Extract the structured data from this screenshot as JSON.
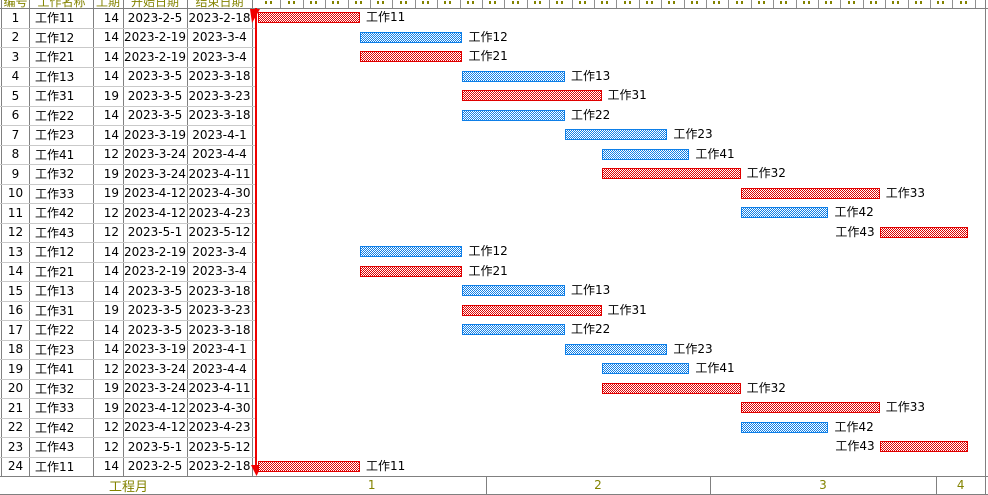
{
  "colors": {
    "critical_bar": "#e00000",
    "normal_bar": "#0e7fe8",
    "timeline_line": "#f00000",
    "accent_text": "#838300",
    "grid_dark": "#808080",
    "grid_light": "#c9c9c9",
    "background": "#ffffff"
  },
  "table": {
    "headers": [
      "编号",
      "工作名称",
      "工期",
      "开始日期",
      "结束日期"
    ],
    "footer_label": "工程月"
  },
  "chart_data": {
    "type": "bar",
    "subtype": "gantt",
    "title": "",
    "xlabel": "工程月",
    "x_ticks": [
      "1",
      "2",
      "3",
      "4"
    ],
    "origin_date": "2023-2-5",
    "legend": {
      "critical_color": "#e00000",
      "normal_color": "#0e7fe8"
    },
    "tasks": [
      {
        "id": "1",
        "name": "工作11",
        "duration": "14",
        "start": "2023-2-5",
        "end": "2023-2-18",
        "type": "critical",
        "label_side": "right"
      },
      {
        "id": "2",
        "name": "工作12",
        "duration": "14",
        "start": "2023-2-19",
        "end": "2023-3-4",
        "type": "normal",
        "label_side": "right"
      },
      {
        "id": "3",
        "name": "工作21",
        "duration": "14",
        "start": "2023-2-19",
        "end": "2023-3-4",
        "type": "critical",
        "label_side": "right"
      },
      {
        "id": "4",
        "name": "工作13",
        "duration": "14",
        "start": "2023-3-5",
        "end": "2023-3-18",
        "type": "normal",
        "label_side": "right"
      },
      {
        "id": "5",
        "name": "工作31",
        "duration": "19",
        "start": "2023-3-5",
        "end": "2023-3-23",
        "type": "critical",
        "label_side": "right"
      },
      {
        "id": "6",
        "name": "工作22",
        "duration": "14",
        "start": "2023-3-5",
        "end": "2023-3-18",
        "type": "normal",
        "label_side": "right"
      },
      {
        "id": "7",
        "name": "工作23",
        "duration": "14",
        "start": "2023-3-19",
        "end": "2023-4-1",
        "type": "normal",
        "label_side": "right"
      },
      {
        "id": "8",
        "name": "工作41",
        "duration": "12",
        "start": "2023-3-24",
        "end": "2023-4-4",
        "type": "normal",
        "label_side": "right"
      },
      {
        "id": "9",
        "name": "工作32",
        "duration": "19",
        "start": "2023-3-24",
        "end": "2023-4-11",
        "type": "critical",
        "label_side": "right"
      },
      {
        "id": "10",
        "name": "工作33",
        "duration": "19",
        "start": "2023-4-12",
        "end": "2023-4-30",
        "type": "critical",
        "label_side": "right"
      },
      {
        "id": "11",
        "name": "工作42",
        "duration": "12",
        "start": "2023-4-12",
        "end": "2023-4-23",
        "type": "normal",
        "label_side": "right"
      },
      {
        "id": "12",
        "name": "工作43",
        "duration": "12",
        "start": "2023-5-1",
        "end": "2023-5-12",
        "type": "critical",
        "label_side": "left"
      },
      {
        "id": "13",
        "name": "工作12",
        "duration": "14",
        "start": "2023-2-19",
        "end": "2023-3-4",
        "type": "normal",
        "label_side": "right"
      },
      {
        "id": "14",
        "name": "工作21",
        "duration": "14",
        "start": "2023-2-19",
        "end": "2023-3-4",
        "type": "critical",
        "label_side": "right"
      },
      {
        "id": "15",
        "name": "工作13",
        "duration": "14",
        "start": "2023-3-5",
        "end": "2023-3-18",
        "type": "normal",
        "label_side": "right"
      },
      {
        "id": "16",
        "name": "工作31",
        "duration": "19",
        "start": "2023-3-5",
        "end": "2023-3-23",
        "type": "critical",
        "label_side": "right"
      },
      {
        "id": "17",
        "name": "工作22",
        "duration": "14",
        "start": "2023-3-5",
        "end": "2023-3-18",
        "type": "normal",
        "label_side": "right"
      },
      {
        "id": "18",
        "name": "工作23",
        "duration": "14",
        "start": "2023-3-19",
        "end": "2023-4-1",
        "type": "normal",
        "label_side": "right"
      },
      {
        "id": "19",
        "name": "工作41",
        "duration": "12",
        "start": "2023-3-24",
        "end": "2023-4-4",
        "type": "normal",
        "label_side": "right"
      },
      {
        "id": "20",
        "name": "工作32",
        "duration": "19",
        "start": "2023-3-24",
        "end": "2023-4-11",
        "type": "critical",
        "label_side": "right"
      },
      {
        "id": "21",
        "name": "工作33",
        "duration": "19",
        "start": "2023-4-12",
        "end": "2023-4-30",
        "type": "critical",
        "label_side": "right"
      },
      {
        "id": "22",
        "name": "工作42",
        "duration": "12",
        "start": "2023-4-12",
        "end": "2023-4-23",
        "type": "normal",
        "label_side": "right"
      },
      {
        "id": "23",
        "name": "工作43",
        "duration": "12",
        "start": "2023-5-1",
        "end": "2023-5-12",
        "type": "critical",
        "label_side": "left"
      },
      {
        "id": "24",
        "name": "工作11",
        "duration": "14",
        "start": "2023-2-5",
        "end": "2023-2-18",
        "type": "critical",
        "label_side": "right"
      }
    ]
  }
}
